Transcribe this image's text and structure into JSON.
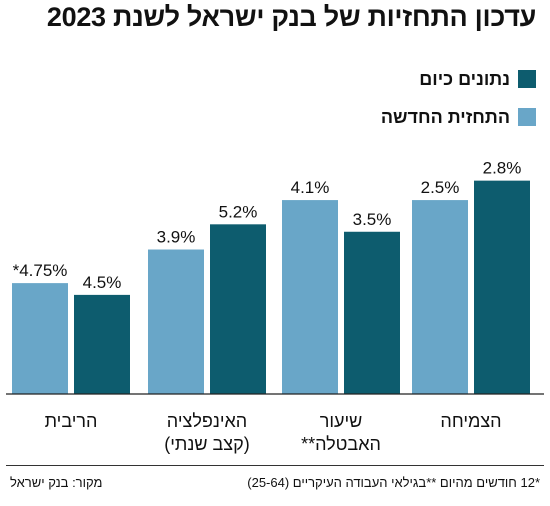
{
  "title": "עדכון התחזיות של בנק ישראל לשנת 2023",
  "legend": [
    {
      "label": "נתונים כיום",
      "color": "#0d5c6e"
    },
    {
      "label": "התחזית החדשה",
      "color": "#69a6c8"
    }
  ],
  "chart_data": {
    "type": "bar",
    "categories": [
      "הריבית",
      "האינפלציה\n(קצב שנתי)",
      "שיעור\nהאבטלה**",
      "הצמיחה"
    ],
    "series": [
      {
        "name": "התחזית החדשה",
        "values": [
          4.75,
          3.9,
          4.1,
          2.5
        ],
        "labels": [
          "*4.75%",
          "3.9%",
          "4.1%",
          "2.5%"
        ],
        "color": "#69a6c8"
      },
      {
        "name": "נתונים כיום",
        "values": [
          4.5,
          5.2,
          3.5,
          2.8
        ],
        "labels": [
          "4.5%",
          "5.2%",
          "3.5%",
          "2.8%"
        ],
        "color": "#0d5c6e"
      }
    ],
    "bar_value_mapping": "values shown by bar height; heights not drawn to a common scale in the original",
    "bar_display_levels": [
      [
        0.462,
        0.413
      ],
      [
        0.602,
        0.707
      ],
      [
        0.808,
        0.676
      ],
      [
        0.808,
        0.889
      ]
    ],
    "grid": false,
    "legend_position": "top-right"
  },
  "footnote": "*12 חודשים מהיום **בגילאי העבודה העיקריים (25-64)",
  "source": "מקור: בנק ישראל"
}
